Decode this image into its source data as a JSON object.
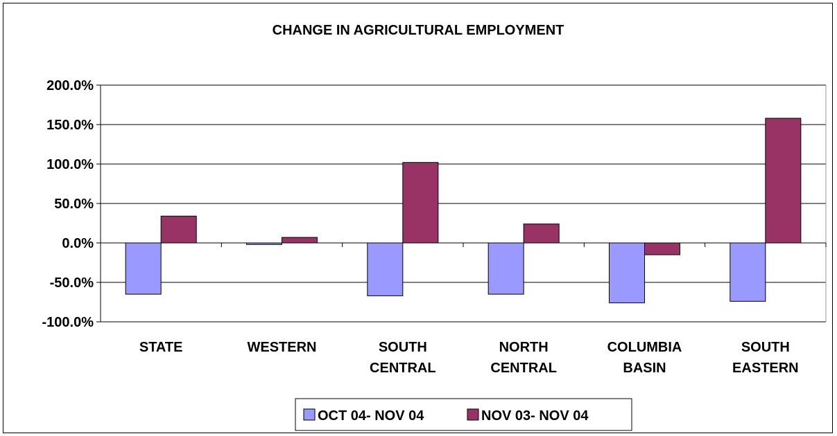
{
  "chart_data": {
    "type": "bar",
    "title": "CHANGE IN AGRICULTURAL EMPLOYMENT",
    "xlabel": "",
    "ylabel": "",
    "categories": [
      [
        "STATE"
      ],
      [
        "WESTERN"
      ],
      [
        "SOUTH",
        "CENTRAL"
      ],
      [
        "NORTH",
        "CENTRAL"
      ],
      [
        "COLUMBIA",
        "BASIN"
      ],
      [
        "SOUTH",
        "EASTERN"
      ]
    ],
    "series": [
      {
        "name": "OCT 04- NOV 04",
        "color": "#9999ff",
        "values": [
          -65,
          -2,
          -67,
          -65,
          -76,
          -74
        ]
      },
      {
        "name": "NOV 03- NOV 04",
        "color": "#993366",
        "values": [
          34,
          7,
          102,
          24,
          -15,
          158
        ]
      }
    ],
    "ylim": [
      -100,
      200
    ],
    "yticks": [
      200,
      150,
      100,
      50,
      0,
      -50,
      -100
    ],
    "ytick_labels": [
      "200.0%",
      "150.0%",
      "100.0%",
      "50.0%",
      "0.0%",
      "-50.0%",
      "-100.0%"
    ],
    "grid": true,
    "legend_position": "bottom"
  }
}
